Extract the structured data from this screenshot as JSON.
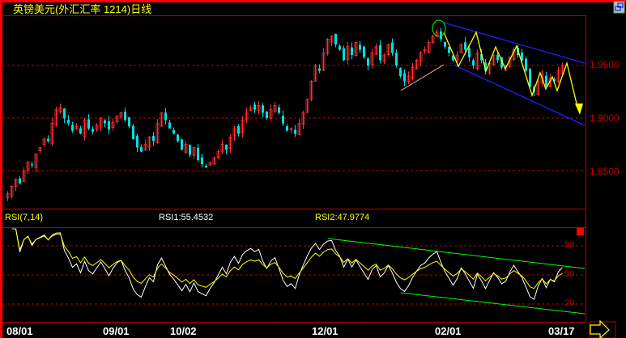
{
  "title": "英镑美元(外汇汇率 1214)日线",
  "indicator": {
    "name": "RSI(7,14)",
    "rsi1": "RSI1:55.4532",
    "rsi2": "RSI2:47.9774"
  },
  "colors": {
    "up": "#ff3030",
    "down": "#00e0e0",
    "grid": "#c00000",
    "rsi1": "#ffffff",
    "rsi2": "#ffff00",
    "channel": "#2020ff",
    "trend": "#00ff00",
    "zigzag": "#ffff00"
  },
  "icons": {
    "restore": "window-restore-icon",
    "scroll": "arrow-right-icon"
  },
  "chart_data": [
    {
      "type": "candlestick",
      "title": "英镑美元(外汇汇率 1214)日线",
      "ylim": [
        1.82,
        1.99
      ],
      "yticks": [
        "1.9500",
        "1.9000",
        "1.8500"
      ],
      "xticks": [
        "08/01",
        "09/01",
        "10/02",
        "12/01",
        "02/01",
        "03/17"
      ],
      "grid": true,
      "close": [
        1.828,
        1.835,
        1.842,
        1.838,
        1.85,
        1.858,
        1.855,
        1.866,
        1.872,
        1.88,
        1.878,
        1.895,
        1.908,
        1.91,
        1.9,
        1.895,
        1.888,
        1.892,
        1.885,
        1.898,
        1.89,
        1.887,
        1.893,
        1.9,
        1.895,
        1.889,
        1.896,
        1.902,
        1.905,
        1.898,
        1.892,
        1.88,
        1.872,
        1.868,
        1.875,
        1.882,
        1.878,
        1.895,
        1.905,
        1.898,
        1.89,
        1.885,
        1.878,
        1.87,
        1.875,
        1.865,
        1.872,
        1.86,
        1.856,
        1.853,
        1.858,
        1.862,
        1.868,
        1.875,
        1.87,
        1.882,
        1.89,
        1.885,
        1.898,
        1.905,
        1.91,
        1.908,
        1.912,
        1.905,
        1.9,
        1.908,
        1.912,
        1.905,
        1.895,
        1.888,
        1.89,
        1.885,
        1.895,
        1.905,
        1.918,
        1.935,
        1.95,
        1.945,
        1.962,
        1.975,
        1.978,
        1.97,
        1.965,
        1.955,
        1.968,
        1.96,
        1.972,
        1.965,
        1.958,
        1.95,
        1.962,
        1.968,
        1.955,
        1.96,
        1.97,
        1.962,
        1.95,
        1.94,
        1.935,
        1.94,
        1.948,
        1.955,
        1.962,
        1.965,
        1.972,
        1.978,
        1.982,
        1.975,
        1.968,
        1.962,
        1.955,
        1.96,
        1.97,
        1.965,
        1.958,
        1.95,
        1.962,
        1.955,
        1.945,
        1.952,
        1.96,
        1.955,
        1.948,
        1.95,
        1.958,
        1.965,
        1.96,
        1.955,
        1.945,
        1.93,
        1.925,
        1.935,
        1.942,
        1.93,
        1.938,
        1.935,
        1.945,
        1.95
      ]
    },
    {
      "type": "line",
      "title": "RSI(7,14)",
      "ylim": [
        0,
        100
      ],
      "yticks": [
        "80",
        "50",
        "20"
      ],
      "series": [
        {
          "name": "RSI1",
          "last": 55.4532
        },
        {
          "name": "RSI2",
          "last": 47.9774
        }
      ]
    }
  ]
}
